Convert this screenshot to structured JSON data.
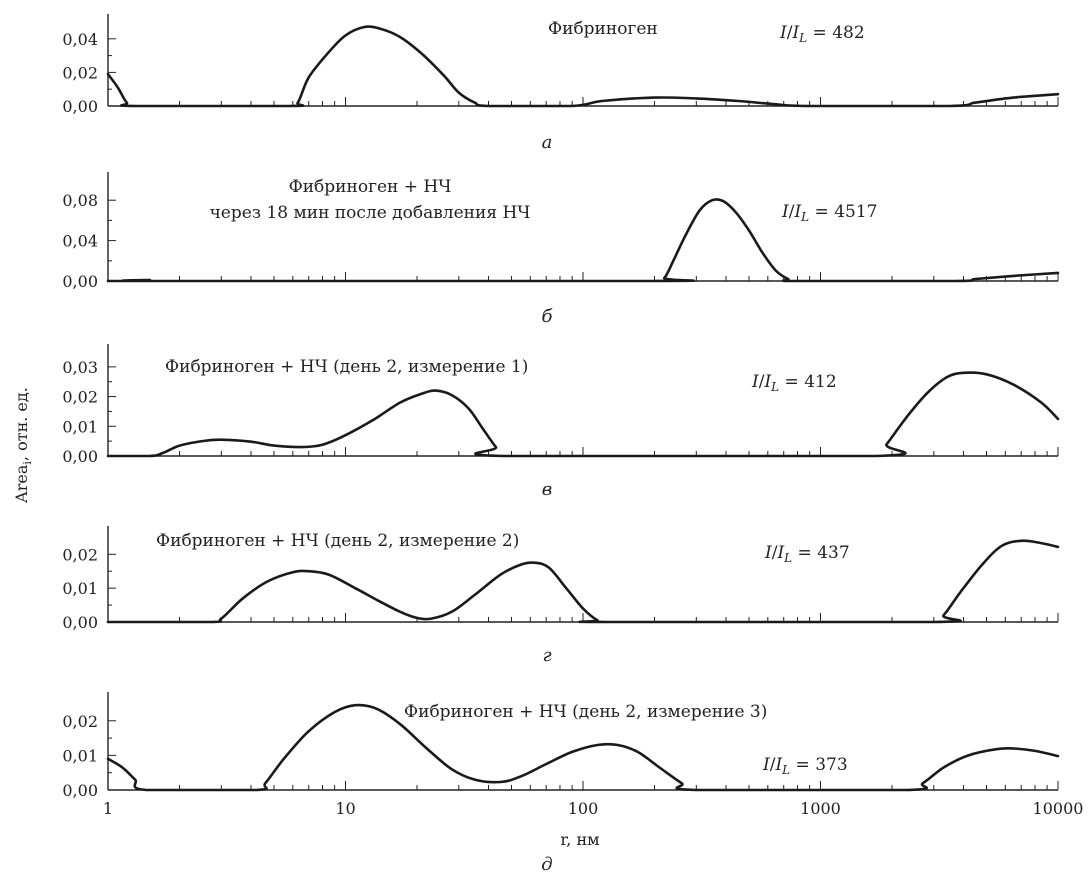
{
  "figure": {
    "xlabel": "r, нм",
    "ylabel": "Area",
    "ylabel_sub": "i",
    "ylabel_rest": ", отн. ед."
  },
  "chart_data": [
    {
      "type": "line",
      "letter": "а",
      "title": [
        "Фибриноген"
      ],
      "ratio": "482",
      "xscale": "log",
      "xlim": [
        1,
        10000
      ],
      "ylim": [
        0,
        0.05
      ],
      "yticks": [
        0,
        0.02,
        0.04
      ],
      "ytick_labels": [
        "0,00",
        "0,02",
        "0,04"
      ],
      "xtick_labels": [],
      "points": [
        [
          1,
          0.019
        ],
        [
          1.1,
          0.011
        ],
        [
          1.2,
          0.002
        ],
        [
          1.3,
          0
        ],
        [
          5.8,
          0
        ],
        [
          6.3,
          0.002
        ],
        [
          7,
          0.017
        ],
        [
          8.5,
          0.032
        ],
        [
          10,
          0.042
        ],
        [
          12,
          0.047
        ],
        [
          14,
          0.046
        ],
        [
          17,
          0.041
        ],
        [
          21,
          0.031
        ],
        [
          26,
          0.018
        ],
        [
          30,
          0.008
        ],
        [
          35,
          0.002
        ],
        [
          40,
          0
        ],
        [
          90,
          0
        ],
        [
          120,
          0.003
        ],
        [
          200,
          0.005
        ],
        [
          300,
          0.0045
        ],
        [
          450,
          0.003
        ],
        [
          650,
          0.001
        ],
        [
          900,
          0
        ],
        [
          3500,
          0
        ],
        [
          4500,
          0.002
        ],
        [
          6500,
          0.005
        ],
        [
          10000,
          0.007
        ]
      ]
    },
    {
      "type": "line",
      "letter": "б",
      "title": [
        "Фибриноген + НЧ",
        "через 18 мин после добавления НЧ"
      ],
      "ratio": "4517",
      "xscale": "log",
      "xlim": [
        1,
        10000
      ],
      "ylim": [
        0,
        0.1
      ],
      "yticks": [
        0,
        0.04,
        0.08
      ],
      "ytick_labels": [
        "0,00",
        "0,04",
        "0,08"
      ],
      "xtick_labels": [],
      "points": [
        [
          1,
          0
        ],
        [
          1.3,
          0
        ],
        [
          1.5,
          0.001
        ],
        [
          1.7,
          0
        ],
        [
          200,
          0
        ],
        [
          220,
          0.003
        ],
        [
          240,
          0.02
        ],
        [
          270,
          0.045
        ],
        [
          310,
          0.07
        ],
        [
          350,
          0.08
        ],
        [
          390,
          0.079
        ],
        [
          440,
          0.068
        ],
        [
          500,
          0.05
        ],
        [
          570,
          0.028
        ],
        [
          650,
          0.01
        ],
        [
          730,
          0.002
        ],
        [
          800,
          0
        ],
        [
          3700,
          0
        ],
        [
          4500,
          0.002
        ],
        [
          6500,
          0.005
        ],
        [
          10000,
          0.008
        ]
      ]
    },
    {
      "type": "line",
      "letter": "в",
      "title": [
        "Фибриноген + НЧ (день 2, измерение 1)"
      ],
      "ratio": "412",
      "xscale": "log",
      "xlim": [
        1,
        10000
      ],
      "ylim": [
        0,
        0.035
      ],
      "yticks": [
        0,
        0.01,
        0.02,
        0.03
      ],
      "ytick_labels": [
        "0,00",
        "0,01",
        "0,02",
        "0,03"
      ],
      "xtick_labels": [],
      "points": [
        [
          1,
          0
        ],
        [
          1.5,
          0
        ],
        [
          1.7,
          0.001
        ],
        [
          2,
          0.0035
        ],
        [
          2.5,
          0.005
        ],
        [
          3,
          0.0055
        ],
        [
          4,
          0.0048
        ],
        [
          5,
          0.0035
        ],
        [
          6.5,
          0.003
        ],
        [
          8,
          0.0038
        ],
        [
          10,
          0.007
        ],
        [
          13,
          0.012
        ],
        [
          17,
          0.018
        ],
        [
          21,
          0.021
        ],
        [
          24,
          0.022
        ],
        [
          28,
          0.0205
        ],
        [
          33,
          0.016
        ],
        [
          38,
          0.009
        ],
        [
          43,
          0.003
        ],
        [
          47,
          0
        ],
        [
          1700,
          0
        ],
        [
          1900,
          0.004
        ],
        [
          2300,
          0.013
        ],
        [
          2800,
          0.021
        ],
        [
          3400,
          0.0265
        ],
        [
          4000,
          0.028
        ],
        [
          5000,
          0.0275
        ],
        [
          6500,
          0.024
        ],
        [
          8500,
          0.018
        ],
        [
          10000,
          0.0125
        ]
      ]
    },
    {
      "type": "line",
      "letter": "г",
      "title": [
        "Фибриноген + НЧ (день 2, измерение 2)"
      ],
      "ratio": "437",
      "xscale": "log",
      "xlim": [
        1,
        10000
      ],
      "ylim": [
        0,
        0.026
      ],
      "yticks": [
        0,
        0.01,
        0.02
      ],
      "ytick_labels": [
        "0,00",
        "0,01",
        "0,02"
      ],
      "xtick_labels": [],
      "points": [
        [
          1,
          0
        ],
        [
          2.7,
          0
        ],
        [
          3,
          0.001
        ],
        [
          3.7,
          0.007
        ],
        [
          4.7,
          0.012
        ],
        [
          6,
          0.0147
        ],
        [
          7,
          0.015
        ],
        [
          8.5,
          0.014
        ],
        [
          11,
          0.01
        ],
        [
          14,
          0.006
        ],
        [
          17,
          0.003
        ],
        [
          20,
          0.0012
        ],
        [
          23,
          0.001
        ],
        [
          28,
          0.003
        ],
        [
          35,
          0.008
        ],
        [
          45,
          0.014
        ],
        [
          55,
          0.017
        ],
        [
          63,
          0.0175
        ],
        [
          72,
          0.016
        ],
        [
          85,
          0.01
        ],
        [
          100,
          0.004
        ],
        [
          115,
          0.0005
        ],
        [
          125,
          0
        ],
        [
          3000,
          0
        ],
        [
          3300,
          0.002
        ],
        [
          3900,
          0.009
        ],
        [
          4800,
          0.017
        ],
        [
          5800,
          0.0225
        ],
        [
          7000,
          0.024
        ],
        [
          8500,
          0.0233
        ],
        [
          10000,
          0.0222
        ]
      ]
    },
    {
      "type": "line",
      "letter": "д",
      "title": [
        "Фибриноген + НЧ (день 2, измерение 3)"
      ],
      "ratio": "373",
      "xscale": "log",
      "xlim": [
        1,
        10000
      ],
      "ylim": [
        0,
        0.026
      ],
      "yticks": [
        0,
        0.01,
        0.02
      ],
      "ytick_labels": [
        "0,00",
        "0,01",
        "0,02"
      ],
      "xtick_labels": [
        "1",
        "10",
        "100",
        "1000",
        "10000"
      ],
      "points": [
        [
          1,
          0.009
        ],
        [
          1.15,
          0.0065
        ],
        [
          1.3,
          0.003
        ],
        [
          1.45,
          0
        ],
        [
          4.2,
          0
        ],
        [
          4.6,
          0.002
        ],
        [
          5.5,
          0.009
        ],
        [
          7,
          0.017
        ],
        [
          9,
          0.0225
        ],
        [
          11,
          0.0245
        ],
        [
          13.5,
          0.0235
        ],
        [
          17,
          0.019
        ],
        [
          22,
          0.012
        ],
        [
          28,
          0.006
        ],
        [
          35,
          0.003
        ],
        [
          45,
          0.0023
        ],
        [
          55,
          0.004
        ],
        [
          70,
          0.0075
        ],
        [
          90,
          0.011
        ],
        [
          115,
          0.013
        ],
        [
          140,
          0.013
        ],
        [
          170,
          0.011
        ],
        [
          210,
          0.0065
        ],
        [
          260,
          0.002
        ],
        [
          300,
          0
        ],
        [
          2300,
          0
        ],
        [
          2700,
          0.002
        ],
        [
          3300,
          0.0065
        ],
        [
          4200,
          0.01
        ],
        [
          5500,
          0.0118
        ],
        [
          6500,
          0.012
        ],
        [
          8000,
          0.0113
        ],
        [
          10000,
          0.0098
        ]
      ]
    }
  ]
}
